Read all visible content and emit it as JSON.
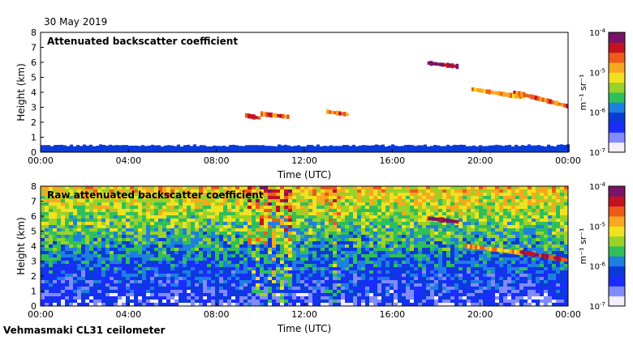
{
  "date_label": "30 May 2019",
  "footer": "Vehmasmaki CL31 ceilometer",
  "colorbar_ticks": [
    "10^-4",
    "10^-5",
    "10^-6",
    "10^-7"
  ],
  "colorbar_unit": "m⁻¹ sr⁻¹",
  "colors": {
    "scale": [
      "#f2eefa",
      "#7f8bff",
      "#1a2cff",
      "#0a3bd8",
      "#1f7fe0",
      "#2fbf5a",
      "#9ad12a",
      "#f1e21f",
      "#f8a81f",
      "#ee5a1a",
      "#c3121f",
      "#7a1468"
    ]
  },
  "chart_data": [
    {
      "type": "heatmap",
      "title": "Attenuated backscatter coefficient",
      "xlabel": "Time (UTC)",
      "ylabel": "Height (km)",
      "xticks": [
        "00:00",
        "04:00",
        "08:00",
        "12:00",
        "16:00",
        "20:00",
        "00:00"
      ],
      "xlim_hours": [
        0,
        24
      ],
      "yticks": [
        0,
        1,
        2,
        3,
        4,
        5,
        6,
        7,
        8
      ],
      "ylim": [
        0,
        8
      ],
      "features": [
        {
          "kind": "surface_layer",
          "t0": 0,
          "t1": 24,
          "h0": 0,
          "h1": 0.45,
          "level": 2.5
        },
        {
          "kind": "cloud_layer",
          "t0": 9.3,
          "t1": 10.0,
          "h0": 2.2,
          "h1": 2.45,
          "level": 10
        },
        {
          "kind": "cloud_layer",
          "t0": 10.0,
          "t1": 11.3,
          "h0": 2.3,
          "h1": 2.55,
          "level": 9
        },
        {
          "kind": "cloud_layer",
          "t0": 13.0,
          "t1": 14.0,
          "h0": 2.45,
          "h1": 2.7,
          "level": 9
        },
        {
          "kind": "cloud_layer",
          "t0": 17.6,
          "t1": 19.0,
          "h0": 5.65,
          "h1": 5.95,
          "level": 11
        },
        {
          "kind": "cloud_layer",
          "t0": 19.6,
          "t1": 22.0,
          "h0": 3.5,
          "h1": 4.2,
          "level": 8
        },
        {
          "kind": "cloud_layer",
          "t0": 21.5,
          "t1": 24.0,
          "h0": 2.8,
          "h1": 4.0,
          "level": 9
        }
      ]
    },
    {
      "type": "heatmap",
      "title": "Raw attenuated backscatter coefficient",
      "xlabel": "Time (UTC)",
      "ylabel": "Height (km)",
      "xticks": [
        "00:00",
        "04:00",
        "08:00",
        "12:00",
        "16:00",
        "20:00",
        "00:00"
      ],
      "xlim_hours": [
        0,
        24
      ],
      "yticks": [
        0,
        1,
        2,
        3,
        4,
        5,
        6,
        7,
        8
      ],
      "ylim": [
        0,
        8
      ],
      "features": [
        {
          "kind": "noise_field",
          "t0": 0,
          "t1": 24,
          "h0": 0,
          "h1": 8
        },
        {
          "kind": "cloud_layer",
          "t0": 17.6,
          "t1": 19.0,
          "h0": 5.55,
          "h1": 5.85,
          "level": 11
        },
        {
          "kind": "cloud_layer",
          "t0": 19.3,
          "t1": 22.0,
          "h0": 3.4,
          "h1": 4.0,
          "level": 8
        },
        {
          "kind": "cloud_layer",
          "t0": 21.8,
          "t1": 24.0,
          "h0": 2.9,
          "h1": 3.6,
          "level": 10
        }
      ]
    }
  ]
}
